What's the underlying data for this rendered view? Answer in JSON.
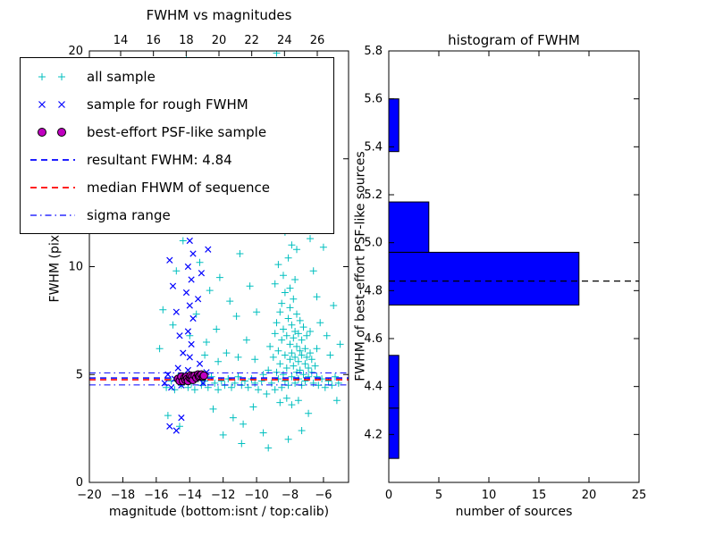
{
  "legend": {
    "entries": [
      {
        "label": "all sample",
        "marker": "plus",
        "color": "#00bfbf"
      },
      {
        "label": "sample for rough FWHM",
        "marker": "x",
        "color": "#0000ff"
      },
      {
        "label": "best-effort PSF-like sample",
        "marker": "circle",
        "color": "#bf00bf",
        "edge_color": "#000000"
      },
      {
        "label": "resultant FWHM: 4.84",
        "marker": "dashed-line",
        "color": "#0000ff"
      },
      {
        "label": "median FHWM of sequence",
        "marker": "dashed-line",
        "color": "#ff0000"
      },
      {
        "label": "sigma range",
        "marker": "dashdot-line",
        "color": "#0000ff"
      }
    ]
  },
  "chart_data": [
    {
      "type": "scatter",
      "title": "FWHM vs magnitudes",
      "xlabel": "magnitude (bottom:isnt / top:calib)",
      "ylabel": "FWHM (pix)",
      "xlim": [
        -20,
        -4.5
      ],
      "ylim": [
        0,
        20
      ],
      "xticks": [
        -20,
        -18,
        -16,
        -14,
        -12,
        -10,
        -8,
        -6
      ],
      "yticks": [
        0,
        5,
        10,
        15,
        20
      ],
      "top_xticks": [
        14,
        16,
        18,
        20,
        22,
        24,
        26
      ],
      "top_xlim": [
        12.09,
        27.91
      ],
      "hlines": [
        {
          "name": "resultant FWHM: 4.84",
          "y": 4.84,
          "color": "#0000ff",
          "style": "dashed",
          "width": 1.6
        },
        {
          "name": "median FHWM of sequence",
          "y": 4.76,
          "color": "#ff0000",
          "style": "dashed",
          "width": 1.6
        },
        {
          "name": "sigma range upper",
          "y": 5.08,
          "color": "#0000ff",
          "style": "dashdot",
          "width": 1
        },
        {
          "name": "sigma range lower",
          "y": 4.52,
          "color": "#0000ff",
          "style": "dashdot",
          "width": 1
        }
      ],
      "series": [
        {
          "name": "all sample",
          "marker": "plus",
          "color": "#00bfbf",
          "points": [
            [
              -9.4,
              4.1
            ],
            [
              -9.3,
              5.2
            ],
            [
              -9.2,
              6.3
            ],
            [
              -9.1,
              4.6
            ],
            [
              -9.0,
              5.8
            ],
            [
              -8.9,
              4.3
            ],
            [
              -8.9,
              6.9
            ],
            [
              -8.8,
              5.1
            ],
            [
              -8.8,
              7.4
            ],
            [
              -8.7,
              4.8
            ],
            [
              -8.7,
              6.1
            ],
            [
              -8.6,
              5.5
            ],
            [
              -8.6,
              7.9
            ],
            [
              -8.5,
              4.4
            ],
            [
              -8.5,
              6.6
            ],
            [
              -8.5,
              8.3
            ],
            [
              -8.4,
              5.0
            ],
            [
              -8.4,
              7.1
            ],
            [
              -8.3,
              4.7
            ],
            [
              -8.3,
              5.9
            ],
            [
              -8.3,
              8.8
            ],
            [
              -8.2,
              5.3
            ],
            [
              -8.2,
              6.8
            ],
            [
              -8.1,
              4.5
            ],
            [
              -8.1,
              7.6
            ],
            [
              -8.0,
              5.7
            ],
            [
              -8.0,
              6.4
            ],
            [
              -8.0,
              8.1
            ],
            [
              -7.9,
              4.9
            ],
            [
              -7.9,
              6.0
            ],
            [
              -7.9,
              7.3
            ],
            [
              -7.8,
              5.4
            ],
            [
              -7.8,
              6.7
            ],
            [
              -7.8,
              8.5
            ],
            [
              -7.7,
              4.6
            ],
            [
              -7.7,
              5.8
            ],
            [
              -7.7,
              7.0
            ],
            [
              -7.6,
              5.1
            ],
            [
              -7.6,
              6.3
            ],
            [
              -7.6,
              7.8
            ],
            [
              -7.5,
              4.8
            ],
            [
              -7.5,
              5.6
            ],
            [
              -7.5,
              6.9
            ],
            [
              -7.4,
              5.2
            ],
            [
              -7.4,
              6.1
            ],
            [
              -7.4,
              7.5
            ],
            [
              -7.3,
              4.5
            ],
            [
              -7.3,
              5.9
            ],
            [
              -7.3,
              6.6
            ],
            [
              -7.2,
              5.0
            ],
            [
              -7.2,
              7.2
            ],
            [
              -7.1,
              4.7
            ],
            [
              -7.1,
              5.5
            ],
            [
              -7.1,
              6.2
            ],
            [
              -7.0,
              5.8
            ],
            [
              -7.0,
              6.8
            ],
            [
              -6.9,
              4.9
            ],
            [
              -6.9,
              5.3
            ],
            [
              -6.8,
              6.0
            ],
            [
              -6.8,
              7.0
            ],
            [
              -6.7,
              5.1
            ],
            [
              -6.7,
              5.7
            ],
            [
              -6.6,
              4.6
            ],
            [
              -6.5,
              5.4
            ],
            [
              -6.4,
              6.2
            ],
            [
              -6.4,
              4.9
            ],
            [
              -8.6,
              3.7
            ],
            [
              -8.2,
              3.9
            ],
            [
              -7.9,
              3.6
            ],
            [
              -7.5,
              3.8
            ],
            [
              -8.9,
              9.2
            ],
            [
              -8.4,
              9.6
            ],
            [
              -8.0,
              9.0
            ],
            [
              -7.7,
              9.4
            ],
            [
              -8.7,
              10.1
            ],
            [
              -8.1,
              10.4
            ],
            [
              -7.9,
              11.0
            ],
            [
              -8.3,
              11.6
            ],
            [
              -8.5,
              12.2
            ],
            [
              -7.6,
              10.8
            ],
            [
              -8.8,
              12.9
            ],
            [
              -8.2,
              13.4
            ],
            [
              -7.4,
              12.5
            ],
            [
              -15.4,
              4.4
            ],
            [
              -15.1,
              4.7
            ],
            [
              -14.9,
              4.3
            ],
            [
              -14.7,
              4.9
            ],
            [
              -14.5,
              4.5
            ],
            [
              -14.3,
              4.8
            ],
            [
              -14.1,
              4.4
            ],
            [
              -13.9,
              4.6
            ],
            [
              -13.7,
              4.3
            ],
            [
              -13.5,
              4.8
            ],
            [
              -13.3,
              4.5
            ],
            [
              -13.1,
              4.7
            ],
            [
              -12.9,
              4.4
            ],
            [
              -12.7,
              4.9
            ],
            [
              -12.5,
              4.6
            ],
            [
              -12.3,
              4.3
            ],
            [
              -12.1,
              4.7
            ],
            [
              -11.9,
              4.5
            ],
            [
              -11.7,
              4.8
            ],
            [
              -11.5,
              4.4
            ],
            [
              -11.3,
              4.6
            ],
            [
              -11.1,
              4.9
            ],
            [
              -10.9,
              4.5
            ],
            [
              -10.7,
              4.7
            ],
            [
              -10.5,
              4.4
            ],
            [
              -10.3,
              4.8
            ],
            [
              -10.1,
              4.6
            ],
            [
              -9.9,
              4.3
            ],
            [
              -9.7,
              4.7
            ],
            [
              -9.6,
              5.0
            ],
            [
              -6.3,
              4.5
            ],
            [
              -6.1,
              4.8
            ],
            [
              -5.9,
              4.4
            ],
            [
              -5.7,
              4.7
            ],
            [
              -5.5,
              4.5
            ],
            [
              -5.3,
              4.9
            ],
            [
              -5.1,
              4.6
            ],
            [
              -15.8,
              6.2
            ],
            [
              -15.6,
              8.0
            ],
            [
              -15.3,
              3.1
            ],
            [
              -15.0,
              7.3
            ],
            [
              -14.8,
              9.8
            ],
            [
              -14.6,
              2.6
            ],
            [
              -14.4,
              11.2
            ],
            [
              -14.2,
              19.6
            ],
            [
              -14.0,
              16.3
            ],
            [
              -13.8,
              13.0
            ],
            [
              -13.6,
              7.8
            ],
            [
              -13.4,
              10.2
            ],
            [
              -13.2,
              12.0
            ],
            [
              -13.0,
              6.5
            ],
            [
              -12.8,
              8.9
            ],
            [
              -12.6,
              3.4
            ],
            [
              -12.4,
              7.1
            ],
            [
              -12.2,
              9.5
            ],
            [
              -12.0,
              2.2
            ],
            [
              -11.8,
              6.0
            ],
            [
              -11.6,
              8.4
            ],
            [
              -11.4,
              3.0
            ],
            [
              -11.2,
              7.7
            ],
            [
              -11.0,
              10.6
            ],
            [
              -10.8,
              2.7
            ],
            [
              -10.6,
              6.6
            ],
            [
              -10.4,
              9.1
            ],
            [
              -10.2,
              3.5
            ],
            [
              -10.0,
              7.9
            ],
            [
              -9.8,
              12.1
            ],
            [
              -9.6,
              2.3
            ],
            [
              -9.4,
              13.6
            ],
            [
              -9.2,
              15.0
            ],
            [
              -9.0,
              17.2
            ],
            [
              -8.8,
              19.9
            ],
            [
              -8.6,
              16.8
            ],
            [
              -8.4,
              14.4
            ],
            [
              -8.2,
              18.0
            ],
            [
              -8.0,
              15.6
            ],
            [
              -7.8,
              13.9
            ],
            [
              -7.6,
              17.5
            ],
            [
              -7.4,
              19.2
            ],
            [
              -7.2,
              14.8
            ],
            [
              -7.0,
              12.8
            ],
            [
              -6.8,
              11.3
            ],
            [
              -6.6,
              9.8
            ],
            [
              -6.4,
              8.6
            ],
            [
              -6.2,
              7.4
            ],
            [
              -6.0,
              10.9
            ],
            [
              -5.8,
              6.8
            ],
            [
              -5.6,
              5.9
            ],
            [
              -5.4,
              8.2
            ],
            [
              -5.2,
              3.8
            ],
            [
              -5.0,
              6.4
            ],
            [
              -10.9,
              1.8
            ],
            [
              -9.3,
              1.6
            ],
            [
              -8.1,
              2.0
            ],
            [
              -7.3,
              2.4
            ],
            [
              -6.9,
              3.2
            ],
            [
              -12.3,
              5.6
            ],
            [
              -13.1,
              5.9
            ],
            [
              -14.0,
              6.8
            ],
            [
              -11.1,
              5.8
            ],
            [
              -10.1,
              5.7
            ]
          ]
        },
        {
          "name": "sample for rough FWHM",
          "marker": "x",
          "color": "#0000ff",
          "points": [
            [
              -14.2,
              4.7
            ],
            [
              -14.1,
              5.2
            ],
            [
              -14.0,
              5.8
            ],
            [
              -13.9,
              6.4
            ],
            [
              -14.1,
              7.0
            ],
            [
              -13.8,
              7.6
            ],
            [
              -14.0,
              8.2
            ],
            [
              -14.2,
              8.8
            ],
            [
              -13.9,
              9.4
            ],
            [
              -14.1,
              10.0
            ],
            [
              -13.8,
              10.6
            ],
            [
              -14.0,
              11.2
            ],
            [
              -13.9,
              11.9
            ],
            [
              -14.1,
              12.4
            ],
            [
              -15.5,
              4.6
            ],
            [
              -15.3,
              5.0
            ],
            [
              -15.1,
              4.4
            ],
            [
              -14.9,
              4.8
            ],
            [
              -14.7,
              5.3
            ],
            [
              -14.5,
              4.5
            ],
            [
              -14.4,
              6.0
            ],
            [
              -14.6,
              6.8
            ],
            [
              -14.8,
              7.9
            ],
            [
              -15.0,
              9.1
            ],
            [
              -15.2,
              10.3
            ],
            [
              -13.6,
              4.9
            ],
            [
              -13.4,
              5.5
            ],
            [
              -13.2,
              4.6
            ],
            [
              -13.0,
              5.1
            ],
            [
              -13.3,
              9.7
            ],
            [
              -12.9,
              10.8
            ],
            [
              -13.5,
              8.5
            ],
            [
              -15.2,
              2.6
            ],
            [
              -14.8,
              2.4
            ],
            [
              -14.5,
              3.0
            ]
          ]
        },
        {
          "name": "best-effort PSF-like sample",
          "marker": "circle",
          "color": "#bf00bf",
          "edge_color": "#000000",
          "points": [
            [
              -14.7,
              4.8
            ],
            [
              -14.6,
              4.7
            ],
            [
              -14.5,
              4.9
            ],
            [
              -14.4,
              4.7
            ],
            [
              -14.3,
              4.85
            ],
            [
              -14.25,
              4.75
            ],
            [
              -14.2,
              4.9
            ],
            [
              -14.15,
              4.8
            ],
            [
              -14.1,
              4.7
            ],
            [
              -14.0,
              4.85
            ],
            [
              -13.95,
              4.95
            ],
            [
              -13.9,
              4.8
            ],
            [
              -13.85,
              4.9
            ],
            [
              -13.8,
              4.75
            ],
            [
              -13.7,
              4.95
            ],
            [
              -13.6,
              4.85
            ],
            [
              -13.5,
              5.0
            ],
            [
              -13.45,
              4.9
            ],
            [
              -13.4,
              4.95
            ],
            [
              -13.3,
              5.0
            ],
            [
              -13.2,
              4.9
            ],
            [
              -13.15,
              4.95
            ]
          ]
        }
      ]
    },
    {
      "type": "bar",
      "orientation": "horizontal",
      "title": "histogram of FWHM",
      "xlabel": "number of sources",
      "ylabel": "FWHM of best-effort PSF-like sources",
      "xlim": [
        0,
        25
      ],
      "ylim": [
        4.0,
        5.8
      ],
      "xticks": [
        0,
        5,
        10,
        15,
        20,
        25
      ],
      "yticks": [
        4.2,
        4.4,
        4.6,
        4.8,
        5.0,
        5.2,
        5.4,
        5.6,
        5.8
      ],
      "bin_edges": [
        4.1,
        4.31,
        4.53,
        4.74,
        4.96,
        5.17,
        5.38,
        5.6
      ],
      "counts": [
        1,
        1,
        0,
        19,
        4,
        0,
        1
      ],
      "bar_color": "#0000ff",
      "bar_edge_color": "#000000",
      "marker_line": {
        "name": "resultant FWHM",
        "y": 4.84,
        "color": "#000000",
        "style": "dashed"
      }
    }
  ]
}
